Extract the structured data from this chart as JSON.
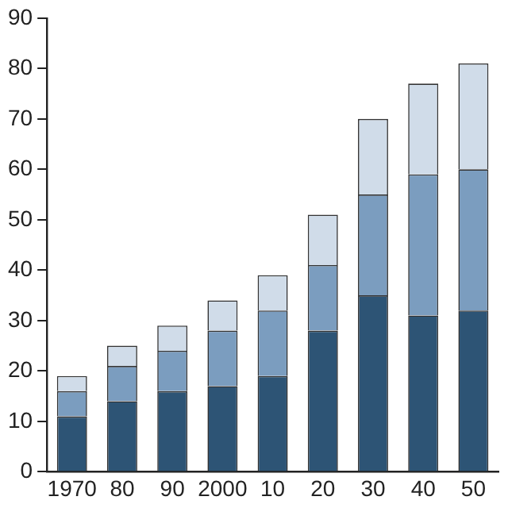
{
  "chart_data": {
    "type": "bar",
    "stacked": true,
    "categories": [
      "1970",
      "80",
      "90",
      "2000",
      "10",
      "20",
      "30",
      "40",
      "50"
    ],
    "series": [
      {
        "color": "#2d5475",
        "values": [
          11,
          14,
          16,
          17,
          19,
          28,
          35,
          31,
          32
        ]
      },
      {
        "color": "#7b9dbf",
        "values": [
          5,
          7,
          8,
          11,
          13,
          13,
          20,
          28,
          28
        ]
      },
      {
        "color": "#d0dce9",
        "values": [
          3,
          4,
          5,
          6,
          7,
          10,
          15,
          18,
          21
        ]
      }
    ],
    "ylim": [
      0,
      90
    ],
    "yticks": [
      0,
      10,
      20,
      30,
      40,
      50,
      60,
      70,
      80,
      90
    ],
    "grid": false,
    "legend": false
  }
}
